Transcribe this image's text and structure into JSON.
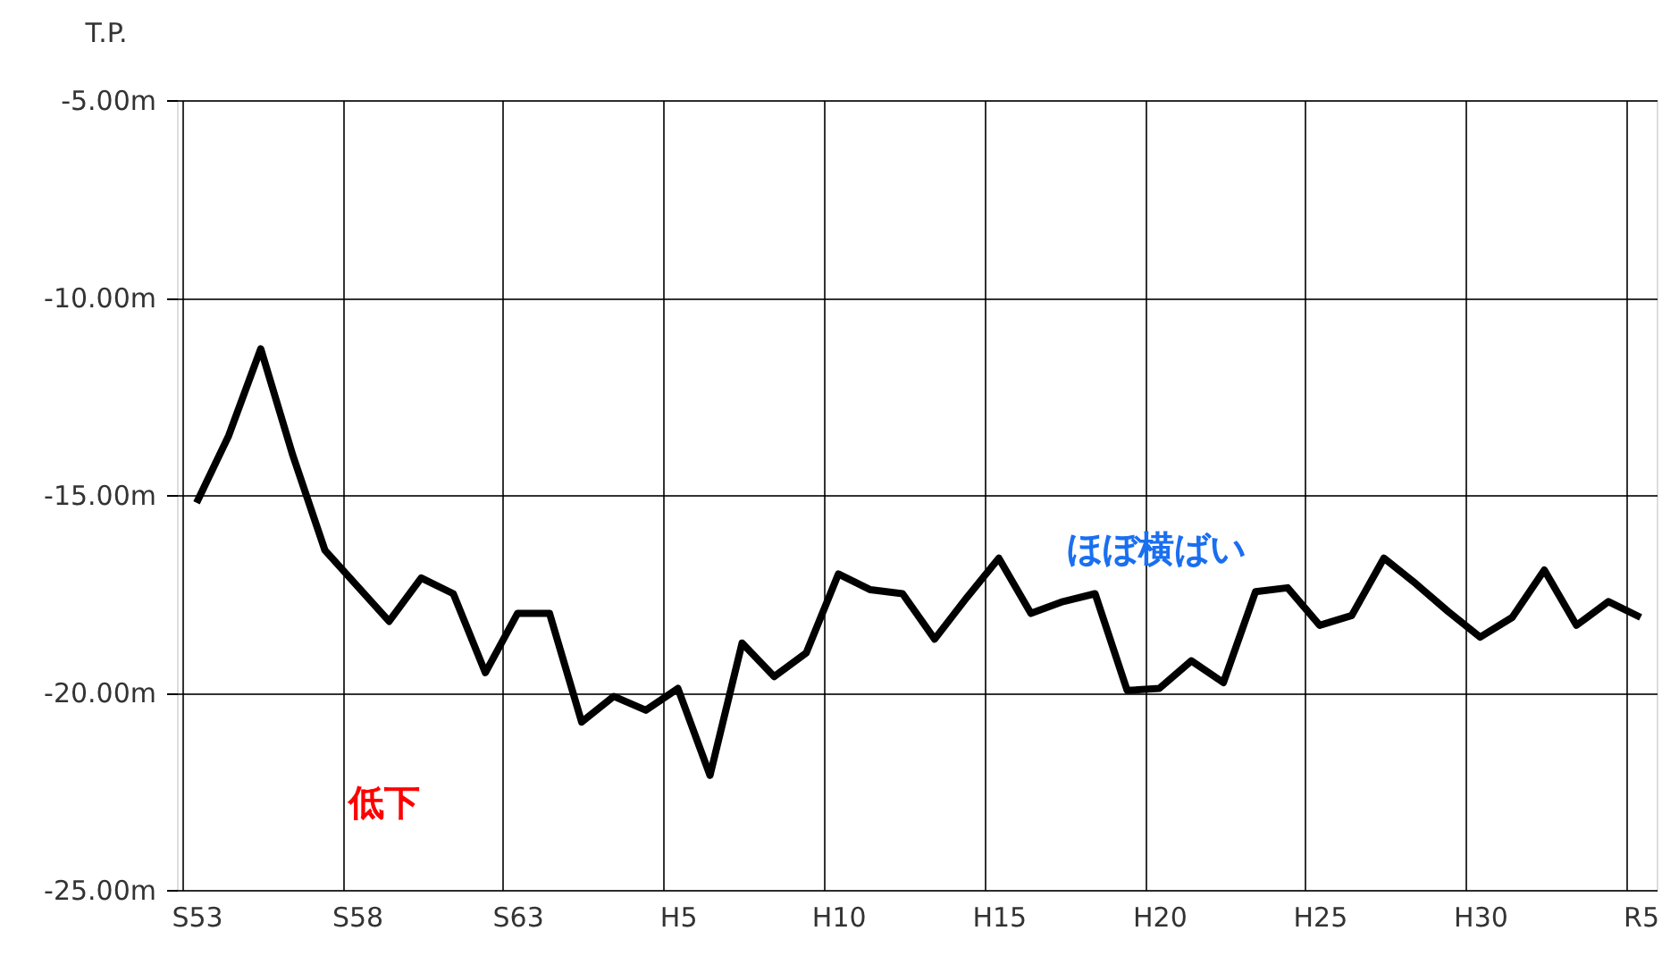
{
  "chart_data": {
    "type": "line",
    "ylabel": "T.P.",
    "categories": [
      "S53",
      null,
      null,
      null,
      null,
      "S58",
      null,
      null,
      null,
      null,
      "S63",
      null,
      null,
      null,
      null,
      "H5",
      null,
      null,
      null,
      null,
      "H10",
      null,
      null,
      null,
      null,
      "H15",
      null,
      null,
      null,
      null,
      "H20",
      null,
      null,
      null,
      null,
      "H25",
      null,
      null,
      null,
      null,
      "H30",
      null,
      null,
      null,
      null,
      "R5"
    ],
    "series": [
      {
        "color": "#000000",
        "values": [
          -15.2,
          -13.5,
          -11.3,
          -14.0,
          -16.4,
          -17.3,
          -18.2,
          -17.1,
          -17.5,
          -19.5,
          -18.0,
          -18.0,
          -20.75,
          -20.1,
          -20.45,
          -19.9,
          -22.1,
          -18.75,
          -19.6,
          -19.0,
          -17.0,
          -17.4,
          -17.5,
          -18.65,
          -17.6,
          -16.6,
          -18.0,
          -17.7,
          -17.5,
          -19.95,
          -19.9,
          -19.2,
          -19.75,
          -17.45,
          -17.35,
          -18.3,
          -18.05,
          -16.6,
          -17.25,
          -17.95,
          -18.6,
          -18.1,
          -16.9,
          -18.3,
          -17.7,
          -18.1
        ]
      }
    ],
    "ylim": [
      -25,
      -5
    ],
    "yticks": [
      {
        "value": -25,
        "label": "-25.00m"
      },
      {
        "value": -20,
        "label": "-20.00m"
      },
      {
        "value": -15,
        "label": "-15.00m"
      },
      {
        "value": -10,
        "label": "-10.00m"
      },
      {
        "value": -5,
        "label": "-5.00m"
      }
    ],
    "grid": true,
    "legend": false,
    "marker": "none",
    "line_style": "solid",
    "annotations": [
      "低下",
      "ほぼ横ばい"
    ]
  }
}
